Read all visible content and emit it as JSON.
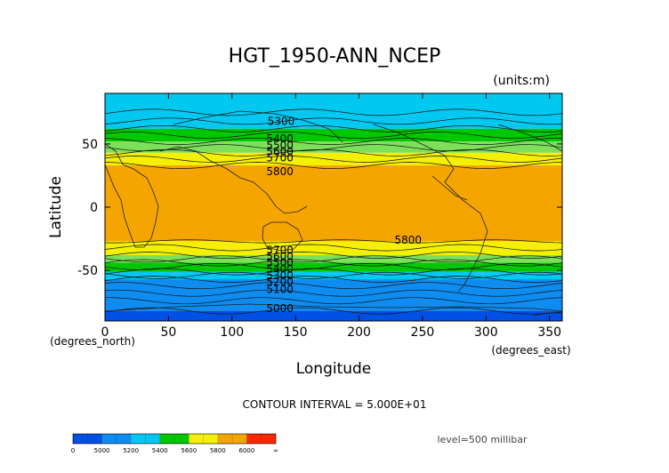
{
  "chart_data": {
    "type": "heatmap",
    "title": "HGT_1950-ANN_NCEP",
    "units_label": "(units:m)",
    "xlabel": "Longitude",
    "ylabel": "Latitude",
    "x_unit_label": "(degrees_east)",
    "y_unit_label": "(degrees_north)",
    "xlim": [
      0,
      360
    ],
    "ylim": [
      -90,
      90
    ],
    "x_ticks": [
      0,
      50,
      100,
      150,
      200,
      250,
      300,
      350
    ],
    "y_ticks": [
      -50,
      0,
      50
    ],
    "contour_interval_text": "CONTOUR INTERVAL = 5.000E+01",
    "level_text": "level=500 millibar",
    "contour_labels": [
      {
        "text": "5300",
        "lon": 128,
        "lat": 68
      },
      {
        "text": "5400",
        "lon": 127,
        "lat": 54
      },
      {
        "text": "5500",
        "lon": 127,
        "lat": 49
      },
      {
        "text": "5600",
        "lon": 127,
        "lat": 44
      },
      {
        "text": "5700",
        "lon": 127,
        "lat": 39
      },
      {
        "text": "5800",
        "lon": 127,
        "lat": 28
      },
      {
        "text": "5800",
        "lon": 228,
        "lat": -26
      },
      {
        "text": "5700",
        "lon": 127,
        "lat": -34
      },
      {
        "text": "5600",
        "lon": 127,
        "lat": -39
      },
      {
        "text": "5500",
        "lon": 127,
        "lat": -44
      },
      {
        "text": "5400",
        "lon": 127,
        "lat": -49
      },
      {
        "text": "5300",
        "lon": 127,
        "lat": -54
      },
      {
        "text": "5200",
        "lon": 127,
        "lat": -59
      },
      {
        "text": "5100",
        "lon": 127,
        "lat": -65
      },
      {
        "text": "5000",
        "lon": 127,
        "lat": -80
      }
    ],
    "bands": [
      {
        "from": 90,
        "to": 62,
        "color": "#00c8f0"
      },
      {
        "from": 62,
        "to": 52,
        "color": "#00c800"
      },
      {
        "from": 52,
        "to": 43,
        "color": "#7de05a"
      },
      {
        "from": 43,
        "to": 33,
        "color": "#f5f000"
      },
      {
        "from": 33,
        "to": -27,
        "color": "#f5a500"
      },
      {
        "from": -27,
        "to": -38,
        "color": "#f5f000"
      },
      {
        "from": -38,
        "to": -44,
        "color": "#7de05a"
      },
      {
        "from": -44,
        "to": -51,
        "color": "#00c800"
      },
      {
        "from": -51,
        "to": -57,
        "color": "#00c8f0"
      },
      {
        "from": -57,
        "to": -82,
        "color": "#0f8cf0"
      },
      {
        "from": -82,
        "to": -90,
        "color": "#0050e6"
      }
    ],
    "colorbar": {
      "colors": [
        "#0050e6",
        "#0f8cf0",
        "#00c8f0",
        "#00c800",
        "#f5f000",
        "#f5a500",
        "#ff2800"
      ],
      "labels": [
        "0",
        "5000",
        "5200",
        "5400",
        "5600",
        "5800",
        "6000",
        "∞"
      ]
    }
  }
}
